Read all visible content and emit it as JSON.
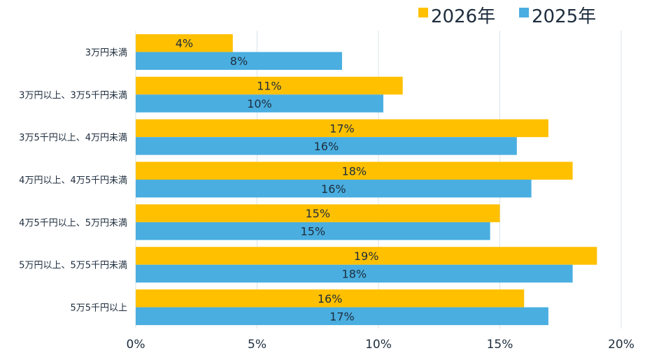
{
  "chart_data": {
    "type": "bar",
    "orientation": "horizontal",
    "categories": [
      "3万円未満",
      "3万円以上、3万5千円未満",
      "3万5千円以上、4万円未満",
      "4万円以上、4万5千円未満",
      "4万5千円以上、5万円未満",
      "5万円以上、5万5千円未満",
      "5万5千円以上"
    ],
    "series": [
      {
        "name": "2026年",
        "color": "#ffc000",
        "values": [
          4,
          11,
          17,
          18,
          15,
          19,
          16
        ],
        "labels": [
          "4%",
          "11%",
          "17%",
          "18%",
          "15%",
          "19%",
          "16%"
        ]
      },
      {
        "name": "2025年",
        "color": "#4aaee0",
        "values": [
          8.5,
          10.2,
          15.7,
          16.3,
          14.6,
          18,
          17
        ],
        "labels": [
          "8%",
          "10%",
          "16%",
          "16%",
          "15%",
          "18%",
          "17%"
        ]
      }
    ],
    "xlim": [
      0,
      20
    ],
    "xticks": [
      "0%",
      "5%",
      "10%",
      "15%",
      "20%"
    ],
    "grid": true,
    "legend_position": "top-right"
  }
}
